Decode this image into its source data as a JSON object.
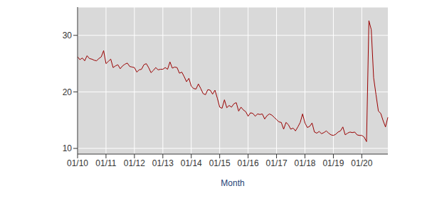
{
  "chart_data": {
    "type": "line",
    "x_label": "Month",
    "categories": [
      "01/10",
      null,
      null,
      null,
      null,
      null,
      null,
      null,
      null,
      null,
      null,
      null,
      "01/11",
      null,
      null,
      null,
      null,
      null,
      null,
      null,
      null,
      null,
      null,
      null,
      "01/12",
      null,
      null,
      null,
      null,
      null,
      null,
      null,
      null,
      null,
      null,
      null,
      "01/13",
      null,
      null,
      null,
      null,
      null,
      null,
      null,
      null,
      null,
      null,
      null,
      "01/14",
      null,
      null,
      null,
      null,
      null,
      null,
      null,
      null,
      null,
      null,
      null,
      "01/15",
      null,
      null,
      null,
      null,
      null,
      null,
      null,
      null,
      null,
      null,
      null,
      "01/16",
      null,
      null,
      null,
      null,
      null,
      null,
      null,
      null,
      null,
      null,
      null,
      "01/17",
      null,
      null,
      null,
      null,
      null,
      null,
      null,
      null,
      null,
      null,
      null,
      "01/18",
      null,
      null,
      null,
      null,
      null,
      null,
      null,
      null,
      null,
      null,
      null,
      "01/19",
      null,
      null,
      null,
      null,
      null,
      null,
      null,
      null,
      null,
      null,
      null,
      "01/20",
      null,
      null,
      null,
      null,
      null,
      null,
      null,
      null,
      null,
      null,
      null
    ],
    "values": [
      26.2,
      25.7,
      26.0,
      25.5,
      26.4,
      25.9,
      25.8,
      25.6,
      25.5,
      25.9,
      26.2,
      27.3,
      25.0,
      25.4,
      25.8,
      24.3,
      24.6,
      24.8,
      24.1,
      24.6,
      24.9,
      25.1,
      24.5,
      24.4,
      24.3,
      23.5,
      23.9,
      24.0,
      24.8,
      25.0,
      24.3,
      23.4,
      23.8,
      24.3,
      23.9,
      24.0,
      24.0,
      24.3,
      24.0,
      25.3,
      24.2,
      24.4,
      24.3,
      23.3,
      23.5,
      22.7,
      21.8,
      22.4,
      21.0,
      20.6,
      20.5,
      21.4,
      20.6,
      19.7,
      19.5,
      20.4,
      20.3,
      19.6,
      20.3,
      18.9,
      17.3,
      17.1,
      18.6,
      17.2,
      17.6,
      17.3,
      17.9,
      18.1,
      16.6,
      17.3,
      16.8,
      16.5,
      15.7,
      16.3,
      16.2,
      15.7,
      16.1,
      16.0,
      16.1,
      15.2,
      15.8,
      16.1,
      15.9,
      15.5,
      15.1,
      14.7,
      14.6,
      13.4,
      14.6,
      14.2,
      13.4,
      13.6,
      13.1,
      13.8,
      14.6,
      16.1,
      14.5,
      13.7,
      13.9,
      14.5,
      12.9,
      12.7,
      13.0,
      12.6,
      12.8,
      13.1,
      12.7,
      12.4,
      12.3,
      12.5,
      12.9,
      13.1,
      13.8,
      12.4,
      12.7,
      12.9,
      12.8,
      12.9,
      12.4,
      12.3,
      12.3,
      12.0,
      11.2,
      32.6,
      31.0,
      22.5,
      19.5,
      16.6,
      16.2,
      14.9,
      13.8,
      15.5
    ],
    "color": "#990000",
    "ylim": [
      9,
      35
    ],
    "yticks": [
      10,
      20,
      30
    ],
    "grid": true
  }
}
